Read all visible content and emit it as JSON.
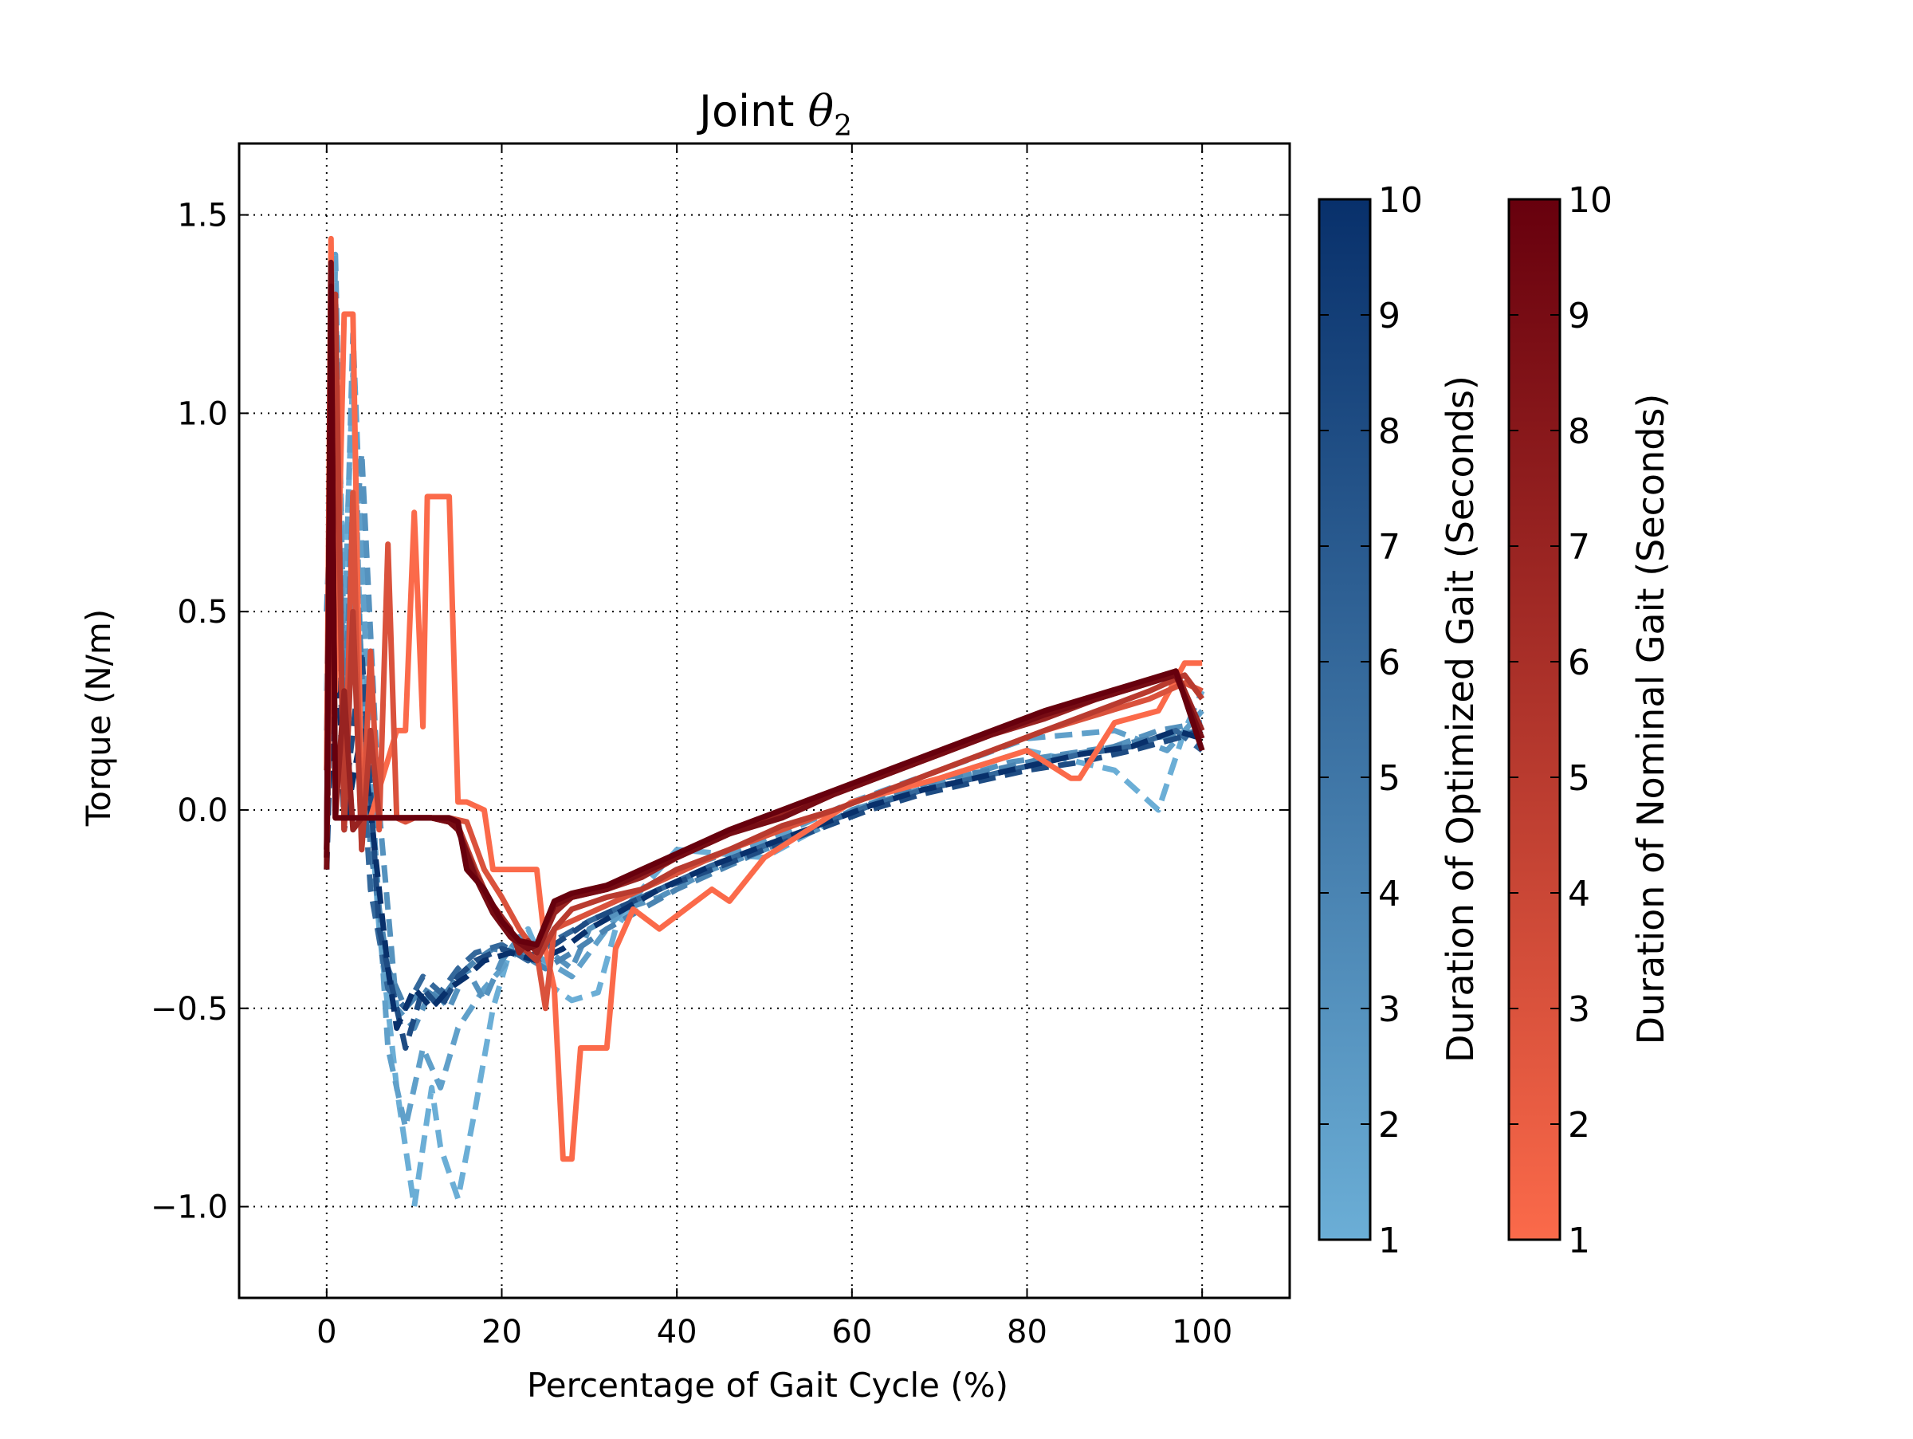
{
  "chart_data": {
    "type": "line",
    "title_prefix": "Joint ",
    "title_symbol": "θ",
    "title_subscript": "2",
    "xlabel": "Percentage of Gait Cycle (%)",
    "ylabel": "Torque (N/m)",
    "xlim": [
      -10,
      110
    ],
    "ylim": [
      -1.23,
      1.68
    ],
    "xticks": [
      0,
      20,
      40,
      60,
      80,
      100
    ],
    "yticks": [
      1.5,
      1.0,
      0.5,
      0.0,
      -0.5,
      -1.0
    ],
    "ytick_labels": [
      "1.5",
      "1.0",
      "0.5",
      "0.0",
      "−0.5",
      "−1.0"
    ],
    "grid": true,
    "grid_style": "dotted",
    "colorbars": [
      {
        "label": "Duration of Optimized Gait (Seconds)",
        "min": 1,
        "max": 10,
        "ticks": [
          "1",
          "2",
          "3",
          "4",
          "5",
          "6",
          "7",
          "8",
          "9",
          "10"
        ],
        "color_low": "#6baed6",
        "color_high": "#08306b"
      },
      {
        "label": "Duration of Nominal Gait (Seconds)",
        "min": 1,
        "max": 10,
        "ticks": [
          "1",
          "2",
          "3",
          "4",
          "5",
          "6",
          "7",
          "8",
          "9",
          "10"
        ],
        "color_low": "#fb6a4a",
        "color_high": "#67000d"
      }
    ],
    "series": [
      {
        "group": "optimized",
        "duration": 1,
        "style": "dashed",
        "x": [
          0,
          1,
          2,
          3,
          4,
          6,
          8,
          10,
          12,
          13,
          15,
          17,
          19,
          21,
          23,
          26,
          28,
          31,
          33,
          36,
          40,
          50,
          60,
          70,
          80,
          90,
          95,
          98,
          100
        ],
        "y": [
          0.3,
          1.3,
          0.5,
          1.1,
          0.3,
          -0.3,
          -0.7,
          -1.0,
          -0.7,
          -0.85,
          -0.98,
          -0.75,
          -0.5,
          -0.35,
          -0.3,
          -0.45,
          -0.48,
          -0.46,
          -0.3,
          -0.2,
          -0.1,
          -0.12,
          0.0,
          0.08,
          0.15,
          0.1,
          0.0,
          0.2,
          0.3
        ]
      },
      {
        "group": "optimized",
        "duration": 2,
        "style": "dashed",
        "x": [
          0,
          1,
          2,
          3,
          5,
          7,
          9,
          11,
          13,
          15,
          18,
          20,
          22,
          25,
          28,
          32,
          36,
          40,
          50,
          60,
          70,
          80,
          90,
          96,
          100
        ],
        "y": [
          0.1,
          1.4,
          0.4,
          1.2,
          0.1,
          -0.6,
          -0.8,
          -0.6,
          -0.7,
          -0.55,
          -0.45,
          -0.4,
          -0.35,
          -0.38,
          -0.42,
          -0.3,
          -0.2,
          -0.15,
          -0.08,
          0.02,
          0.1,
          0.18,
          0.2,
          0.15,
          0.25
        ]
      },
      {
        "group": "optimized",
        "duration": 3,
        "style": "dashed",
        "x": [
          0,
          1,
          2,
          4,
          6,
          8,
          10,
          12,
          14,
          16,
          18,
          20,
          22,
          25,
          28,
          30,
          34,
          38,
          44,
          50,
          56,
          60,
          66,
          72,
          78,
          84,
          90,
          95,
          100
        ],
        "y": [
          0.2,
          1.0,
          0.3,
          0.9,
          0.0,
          -0.5,
          -0.55,
          -0.45,
          -0.5,
          -0.4,
          -0.48,
          -0.38,
          -0.32,
          -0.35,
          -0.4,
          -0.3,
          -0.25,
          -0.22,
          -0.15,
          -0.1,
          -0.05,
          0.0,
          0.04,
          0.08,
          0.12,
          0.14,
          0.16,
          0.2,
          0.22
        ]
      },
      {
        "group": "optimized",
        "duration": 4,
        "style": "dashed",
        "x": [
          0,
          1,
          2,
          3,
          5,
          7,
          9,
          11,
          13,
          15,
          17,
          19,
          22,
          25,
          28,
          32,
          36,
          40,
          46,
          52,
          58,
          64,
          70,
          76,
          82,
          88,
          94,
          100
        ],
        "y": [
          0.5,
          1.1,
          0.2,
          0.8,
          -0.1,
          -0.4,
          -0.5,
          -0.45,
          -0.48,
          -0.42,
          -0.38,
          -0.35,
          -0.36,
          -0.4,
          -0.36,
          -0.3,
          -0.25,
          -0.2,
          -0.14,
          -0.08,
          -0.02,
          0.03,
          0.08,
          0.1,
          0.13,
          0.15,
          0.18,
          0.2
        ]
      },
      {
        "group": "optimized",
        "duration": 6,
        "style": "dashed",
        "x": [
          0,
          1,
          2,
          3,
          5,
          7,
          9,
          11,
          13,
          15,
          17,
          20,
          23,
          26,
          30,
          34,
          38,
          44,
          50,
          56,
          62,
          68,
          74,
          80,
          86,
          92,
          97,
          100
        ],
        "y": [
          0.1,
          0.9,
          0.1,
          0.5,
          -0.2,
          -0.45,
          -0.5,
          -0.42,
          -0.46,
          -0.4,
          -0.36,
          -0.34,
          -0.38,
          -0.33,
          -0.28,
          -0.24,
          -0.2,
          -0.14,
          -0.09,
          -0.04,
          0.01,
          0.05,
          0.08,
          0.11,
          0.14,
          0.16,
          0.2,
          0.15
        ]
      },
      {
        "group": "optimized",
        "duration": 8,
        "style": "dashed",
        "x": [
          0,
          1,
          2,
          4,
          6,
          8,
          9,
          11,
          13,
          15,
          17,
          20,
          23,
          26,
          30,
          34,
          38,
          44,
          50,
          56,
          62,
          68,
          74,
          80,
          86,
          92,
          97,
          100
        ],
        "y": [
          -0.1,
          0.8,
          0.0,
          0.4,
          -0.3,
          -0.5,
          -0.6,
          -0.45,
          -0.5,
          -0.42,
          -0.38,
          -0.35,
          -0.37,
          -0.34,
          -0.28,
          -0.24,
          -0.2,
          -0.15,
          -0.1,
          -0.05,
          0.0,
          0.04,
          0.07,
          0.1,
          0.12,
          0.15,
          0.18,
          0.2
        ]
      },
      {
        "group": "optimized",
        "duration": 10,
        "style": "dashed",
        "x": [
          0,
          1,
          2,
          4,
          6,
          7,
          8,
          10,
          12,
          14,
          16,
          18,
          21,
          24,
          27,
          30,
          34,
          38,
          44,
          50,
          56,
          62,
          68,
          74,
          80,
          86,
          92,
          97,
          100
        ],
        "y": [
          -0.15,
          0.6,
          -0.05,
          0.2,
          -0.2,
          -0.4,
          -0.55,
          -0.45,
          -0.5,
          -0.45,
          -0.42,
          -0.38,
          -0.36,
          -0.38,
          -0.35,
          -0.3,
          -0.25,
          -0.2,
          -0.14,
          -0.09,
          -0.04,
          0.01,
          0.05,
          0.08,
          0.11,
          0.14,
          0.16,
          0.2,
          0.18
        ]
      },
      {
        "group": "nominal",
        "duration": 1,
        "style": "solid",
        "x": [
          0,
          0.5,
          1,
          2,
          3,
          4,
          5,
          8,
          9,
          10,
          11,
          11.5,
          12,
          14,
          15,
          16,
          18,
          19,
          20,
          21,
          24,
          25,
          26,
          27,
          28,
          29,
          32,
          33,
          35,
          38,
          44,
          46,
          50,
          60,
          70,
          80,
          85,
          86,
          90,
          95,
          98,
          99,
          100
        ],
        "y": [
          0.1,
          1.44,
          0.3,
          1.25,
          1.25,
          -0.02,
          -0.02,
          0.2,
          0.2,
          0.75,
          0.21,
          0.79,
          0.79,
          0.79,
          0.02,
          0.02,
          0.0,
          -0.15,
          -0.15,
          -0.15,
          -0.15,
          -0.35,
          -0.45,
          -0.88,
          -0.88,
          -0.6,
          -0.6,
          -0.35,
          -0.25,
          -0.3,
          -0.2,
          -0.23,
          -0.12,
          0.02,
          0.08,
          0.15,
          0.08,
          0.08,
          0.22,
          0.25,
          0.37,
          0.37,
          0.37
        ]
      },
      {
        "group": "nominal",
        "duration": 3,
        "style": "solid",
        "x": [
          0,
          1,
          2,
          3,
          4,
          5,
          6,
          7,
          8,
          9,
          10,
          12,
          14,
          16,
          18,
          20,
          22,
          24,
          25,
          26,
          28,
          32,
          36,
          40,
          46,
          52,
          58,
          64,
          70,
          76,
          82,
          88,
          94,
          98,
          100
        ],
        "y": [
          -0.1,
          1.2,
          -0.05,
          0.8,
          -0.1,
          0.4,
          -0.05,
          0.67,
          -0.02,
          -0.03,
          -0.02,
          -0.02,
          -0.02,
          -0.03,
          -0.15,
          -0.22,
          -0.3,
          -0.36,
          -0.5,
          -0.3,
          -0.28,
          -0.24,
          -0.2,
          -0.16,
          -0.1,
          -0.05,
          0.0,
          0.05,
          0.1,
          0.15,
          0.2,
          0.24,
          0.28,
          0.32,
          0.3
        ]
      },
      {
        "group": "nominal",
        "duration": 5,
        "style": "solid",
        "x": [
          0,
          1,
          2,
          3,
          4,
          5,
          6,
          8,
          10,
          12,
          14,
          15,
          17,
          19,
          21,
          23,
          24,
          26,
          28,
          32,
          36,
          40,
          46,
          52,
          58,
          64,
          70,
          76,
          82,
          88,
          94,
          98,
          100
        ],
        "y": [
          -0.12,
          1.3,
          -0.05,
          0.5,
          -0.1,
          0.2,
          -0.02,
          -0.02,
          -0.02,
          -0.02,
          -0.03,
          -0.04,
          -0.15,
          -0.25,
          -0.32,
          -0.36,
          -0.38,
          -0.3,
          -0.25,
          -0.22,
          -0.2,
          -0.15,
          -0.1,
          -0.04,
          0.0,
          0.05,
          0.1,
          0.15,
          0.2,
          0.25,
          0.3,
          0.34,
          0.28
        ]
      },
      {
        "group": "nominal",
        "duration": 7,
        "style": "solid",
        "x": [
          0,
          0.5,
          1,
          2,
          3,
          4,
          6,
          8,
          10,
          12,
          14,
          15,
          17,
          19,
          21,
          22,
          23,
          24,
          26,
          28,
          32,
          36,
          40,
          46,
          52,
          58,
          64,
          70,
          76,
          82,
          88,
          94,
          97,
          100
        ],
        "y": [
          -0.1,
          1.35,
          -0.02,
          0.3,
          -0.05,
          -0.02,
          -0.02,
          -0.02,
          -0.02,
          -0.02,
          -0.03,
          -0.05,
          -0.16,
          -0.24,
          -0.3,
          -0.36,
          -0.33,
          -0.36,
          -0.26,
          -0.22,
          -0.2,
          -0.17,
          -0.12,
          -0.06,
          -0.01,
          0.04,
          0.09,
          0.14,
          0.19,
          0.23,
          0.28,
          0.32,
          0.35,
          0.2
        ]
      },
      {
        "group": "nominal",
        "duration": 9,
        "style": "solid",
        "x": [
          0,
          0.5,
          1,
          2,
          4,
          6,
          8,
          10,
          12,
          14,
          15,
          17,
          19,
          21,
          23,
          24,
          26,
          28,
          32,
          36,
          40,
          46,
          52,
          58,
          64,
          70,
          76,
          82,
          88,
          94,
          97,
          100
        ],
        "y": [
          -0.15,
          1.38,
          -0.02,
          -0.02,
          -0.02,
          -0.02,
          -0.02,
          -0.02,
          -0.02,
          -0.03,
          -0.05,
          -0.17,
          -0.26,
          -0.32,
          -0.35,
          -0.34,
          -0.24,
          -0.22,
          -0.2,
          -0.16,
          -0.12,
          -0.06,
          -0.02,
          0.04,
          0.09,
          0.14,
          0.19,
          0.24,
          0.28,
          0.32,
          0.34,
          0.18
        ]
      },
      {
        "group": "nominal",
        "duration": 10,
        "style": "solid",
        "x": [
          0,
          0.5,
          1,
          2,
          4,
          6,
          8,
          10,
          12,
          14,
          15,
          16,
          18,
          20,
          22,
          24,
          26,
          28,
          32,
          36,
          40,
          46,
          52,
          58,
          64,
          70,
          76,
          82,
          88,
          94,
          97,
          100
        ],
        "y": [
          -0.12,
          1.32,
          -0.02,
          -0.02,
          -0.02,
          -0.02,
          -0.02,
          -0.02,
          -0.02,
          -0.02,
          -0.03,
          -0.15,
          -0.2,
          -0.28,
          -0.33,
          -0.34,
          -0.23,
          -0.21,
          -0.19,
          -0.15,
          -0.11,
          -0.05,
          0.0,
          0.05,
          0.1,
          0.15,
          0.2,
          0.25,
          0.29,
          0.33,
          0.35,
          0.15
        ]
      }
    ]
  }
}
